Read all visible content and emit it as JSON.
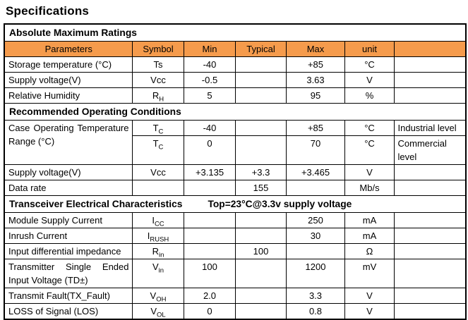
{
  "page_title": "Specifications",
  "colors": {
    "header_bg": "#F59B4C",
    "border": "#000000",
    "text": "#000000"
  },
  "table": {
    "columns": [
      "Parameters",
      "Symbol",
      "Min",
      "Typical",
      "Max",
      "unit",
      ""
    ],
    "rows": [
      {
        "type": "section",
        "label": "Absolute Maximum Ratings",
        "note": ""
      },
      {
        "type": "header"
      },
      {
        "type": "data",
        "parameter": "Storage temperature (°C)",
        "symbol": {
          "base": "Ts",
          "sub": ""
        },
        "min": "-40",
        "typical": "",
        "max": "+85",
        "unit": "°C",
        "note": ""
      },
      {
        "type": "data",
        "parameter": "Supply voltage(V)",
        "symbol": {
          "base": "Vcc",
          "sub": ""
        },
        "min": "-0.5",
        "typical": "",
        "max": "3.63",
        "unit": "V",
        "note": ""
      },
      {
        "type": "data",
        "parameter": "Relative Humidity",
        "symbol": {
          "base": "R",
          "sub": "H"
        },
        "min": "5",
        "typical": "",
        "max": "95",
        "unit": "%",
        "note": ""
      },
      {
        "type": "section",
        "label": "Recommended Operating Conditions",
        "note": ""
      },
      {
        "type": "data",
        "parameter": "Case Operating Temperature Range (°C)",
        "justify": true,
        "param_rowspan": 2,
        "symbol": {
          "base": "T",
          "sub": "C"
        },
        "min": "-40",
        "typical": "",
        "max": "+85",
        "unit": "°C",
        "note": "Industrial level"
      },
      {
        "type": "data",
        "parameter": null,
        "symbol": {
          "base": "T",
          "sub": "C"
        },
        "min": "0",
        "typical": "",
        "max": "70",
        "unit": "°C",
        "note": "Commercial level"
      },
      {
        "type": "data",
        "parameter": "Supply voltage(V)",
        "symbol": {
          "base": "Vcc",
          "sub": ""
        },
        "min": "+3.135",
        "typical": "+3.3",
        "max": "+3.465",
        "unit": "V",
        "note": ""
      },
      {
        "type": "data",
        "parameter": "Data rate",
        "symbol": {
          "base": "",
          "sub": ""
        },
        "min": "",
        "typical": "155",
        "max": "",
        "unit": "Mb/s",
        "note": ""
      },
      {
        "type": "section",
        "label": "Transceiver Electrical Characteristics",
        "note": "Top=23°C@3.3v supply voltage"
      },
      {
        "type": "data",
        "parameter": "Module Supply Current",
        "symbol": {
          "base": "I",
          "sub": "CC"
        },
        "min": "",
        "typical": "",
        "max": "250",
        "unit": "mA",
        "note": ""
      },
      {
        "type": "data",
        "parameter": "Inrush Current",
        "symbol": {
          "base": "I",
          "sub": "RUSH"
        },
        "min": "",
        "typical": "",
        "max": "30",
        "unit": "mA",
        "note": ""
      },
      {
        "type": "data",
        "parameter": "Input differential impedance",
        "symbol": {
          "base": "R",
          "sub": "in"
        },
        "min": "",
        "typical": "100",
        "max": "",
        "unit": "Ω",
        "note": ""
      },
      {
        "type": "data",
        "parameter": "Transmitter Single Ended Input Voltage (TD±)",
        "justify": true,
        "symbol": {
          "base": "V",
          "sub": "in"
        },
        "min": "100",
        "typical": "",
        "max": "1200",
        "unit": "mV",
        "note": ""
      },
      {
        "type": "data",
        "parameter": "Transmit Fault(TX_Fault)",
        "symbol": {
          "base": "V",
          "sub": "OH"
        },
        "min": "2.0",
        "typical": "",
        "max": "3.3",
        "unit": "V",
        "note": ""
      },
      {
        "type": "data",
        "parameter": "LOSS of Signal (LOS)",
        "symbol": {
          "base": "V",
          "sub": "OL"
        },
        "min": "0",
        "typical": "",
        "max": "0.8",
        "unit": "V",
        "note": ""
      }
    ]
  }
}
